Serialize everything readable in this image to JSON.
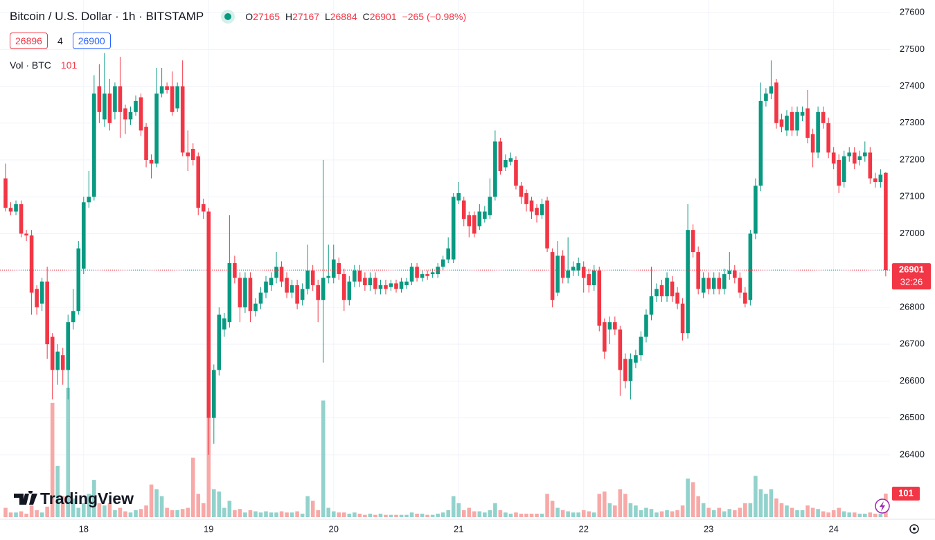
{
  "chart_data": {
    "type": "candlestick",
    "title": "Bitcoin / U.S. Dollar · 1h · BITSTAMP",
    "ohlc_letters": [
      "O",
      "H",
      "L",
      "C"
    ],
    "change": "−265 (−0.98%)",
    "bid": 26896,
    "spread": 4,
    "ask": 26900,
    "volume_legend": "Vol · BTC",
    "countdown": "32:26",
    "branding": "TradingView",
    "up_color": "#089981",
    "down_color": "#f23645",
    "volume_up_color": "#92d2cc",
    "volume_down_color": "#f7a9a7",
    "grid": true,
    "ylim": [
      26225,
      27634
    ],
    "yticks": [
      26400,
      26500,
      26600,
      26700,
      26800,
      26900,
      27000,
      27100,
      27200,
      27300,
      27400,
      27500,
      27600
    ],
    "categories": [
      null,
      null,
      null,
      null,
      null,
      null,
      null,
      null,
      null,
      null,
      null,
      null,
      null,
      null,
      null,
      "18",
      null,
      null,
      null,
      null,
      null,
      null,
      null,
      null,
      null,
      null,
      null,
      null,
      null,
      null,
      null,
      null,
      null,
      null,
      null,
      null,
      null,
      null,
      null,
      "19",
      null,
      null,
      null,
      null,
      null,
      null,
      null,
      null,
      null,
      null,
      null,
      null,
      null,
      null,
      null,
      null,
      null,
      null,
      null,
      null,
      null,
      null,
      null,
      "20",
      null,
      null,
      null,
      null,
      null,
      null,
      null,
      null,
      null,
      null,
      null,
      null,
      null,
      null,
      null,
      null,
      null,
      null,
      null,
      null,
      null,
      null,
      null,
      "21",
      null,
      null,
      null,
      null,
      null,
      null,
      null,
      null,
      null,
      null,
      null,
      null,
      null,
      null,
      null,
      null,
      null,
      null,
      null,
      null,
      null,
      null,
      null,
      "22",
      null,
      null,
      null,
      null,
      null,
      null,
      null,
      null,
      null,
      null,
      null,
      null,
      null,
      null,
      null,
      null,
      null,
      null,
      null,
      null,
      null,
      null,
      null,
      "23",
      null,
      null,
      null,
      null,
      null,
      null,
      null,
      null,
      null,
      null,
      null,
      null,
      null,
      null,
      null,
      null,
      null,
      null,
      null,
      null,
      null,
      null,
      null,
      "24",
      null,
      null,
      null,
      null,
      null,
      null,
      null,
      null,
      null,
      null
    ],
    "open": [
      27150,
      27070,
      27060,
      27080,
      27000,
      26995,
      26850,
      26810,
      26870,
      26720,
      26630,
      26670,
      26630,
      26760,
      26790,
      26905,
      27085,
      27100,
      27400,
      27310,
      27380,
      27330,
      27400,
      27340,
      27310,
      27330,
      27370,
      27290,
      27200,
      27190,
      27380,
      27400,
      27400,
      27340,
      27400,
      27220,
      27230,
      27210,
      27080,
      27060,
      26500,
      26630,
      26740,
      26760,
      26920,
      26880,
      26800,
      26880,
      26790,
      26810,
      26840,
      26860,
      26880,
      26910,
      26880,
      26840,
      26860,
      26820,
      26850,
      26900,
      26860,
      26820,
      26880,
      26880,
      26920,
      26890,
      26820,
      26870,
      26900,
      26880,
      26860,
      26880,
      26850,
      26860,
      26855,
      26865,
      26850,
      26860,
      26870,
      26910,
      26880,
      26890,
      26890,
      26890,
      26910,
      26930,
      26930,
      27090,
      27090,
      27050,
      27050,
      27020,
      27040,
      27050,
      27100,
      27250,
      27180,
      27195,
      27200,
      27130,
      27110,
      27090,
      27070,
      27050,
      27090,
      26950,
      26840,
      26940,
      26880,
      26900,
      26900,
      26910,
      26890,
      26860,
      26900,
      26760,
      26740,
      26760,
      26740,
      26660,
      26600,
      26650,
      26670,
      26720,
      26780,
      26830,
      26860,
      26830,
      26870,
      26840,
      26810,
      26730,
      27010,
      26950,
      26840,
      26880,
      26850,
      26880,
      26850,
      26890,
      26900,
      26880,
      26840,
      26820,
      27000,
      27130,
      27360,
      27380,
      27410,
      27310,
      27280,
      27330,
      27280,
      27320,
      27340,
      27270,
      27220,
      27330,
      27300,
      27220,
      27200,
      27140,
      27210,
      27220,
      27200,
      27210,
      27220,
      27150,
      27140,
      27165
    ],
    "high": [
      27190,
      27085,
      27090,
      27090,
      27010,
      27010,
      26860,
      26880,
      26910,
      26730,
      26700,
      26690,
      26780,
      26850,
      26980,
      27100,
      27170,
      27430,
      27460,
      27490,
      27420,
      27410,
      27480,
      27350,
      27345,
      27375,
      27380,
      27300,
      27215,
      27450,
      27450,
      27410,
      27440,
      27410,
      27470,
      27280,
      27245,
      27220,
      27095,
      27070,
      26645,
      26800,
      26785,
      27050,
      26940,
      26895,
      26895,
      26895,
      26825,
      26855,
      26885,
      26895,
      26950,
      26925,
      26895,
      26875,
      26875,
      26865,
      26970,
      26915,
      26875,
      27200,
      26970,
      26970,
      26935,
      26905,
      26885,
      26915,
      26915,
      26895,
      26895,
      26895,
      26875,
      26875,
      26875,
      26875,
      26880,
      26880,
      26920,
      26920,
      26900,
      26900,
      26905,
      26920,
      26940,
      26990,
      27110,
      27140,
      27100,
      27060,
      27060,
      27080,
      27075,
      27150,
      27280,
      27260,
      27215,
      27220,
      27210,
      27140,
      27120,
      27100,
      27080,
      27095,
      27100,
      26960,
      26980,
      26955,
      26990,
      26925,
      26935,
      26925,
      26905,
      26915,
      26910,
      26770,
      26775,
      26775,
      26750,
      26675,
      26675,
      26685,
      26735,
      26795,
      26910,
      26865,
      26875,
      26895,
      26885,
      26855,
      26825,
      27080,
      27025,
      26965,
      26895,
      26895,
      26895,
      26895,
      26905,
      26950,
      26915,
      26895,
      26855,
      27010,
      27150,
      27410,
      27395,
      27470,
      27420,
      27325,
      27335,
      27345,
      27345,
      27345,
      27390,
      27285,
      27345,
      27345,
      27315,
      27235,
      27215,
      27225,
      27235,
      27235,
      27225,
      27250,
      27235,
      27165,
      27175,
      27167
    ],
    "low": [
      27060,
      27050,
      27050,
      26990,
      26980,
      26780,
      26780,
      26790,
      26660,
      26550,
      26590,
      26590,
      26550,
      26740,
      26780,
      26890,
      27070,
      27090,
      27300,
      27290,
      27280,
      27310,
      27260,
      27270,
      27295,
      27320,
      27265,
      27180,
      27150,
      27180,
      27370,
      27380,
      27320,
      27330,
      27210,
      27170,
      27185,
      27050,
      27040,
      26400,
      26430,
      26615,
      26720,
      26745,
      26865,
      26760,
      26785,
      26760,
      26775,
      26795,
      26825,
      26845,
      26865,
      26855,
      26825,
      26825,
      26795,
      26805,
      26835,
      26845,
      26760,
      26650,
      26865,
      26865,
      26875,
      26790,
      26805,
      26855,
      26855,
      26845,
      26845,
      26835,
      26835,
      26835,
      26845,
      26840,
      26840,
      26850,
      26860,
      26870,
      26870,
      26875,
      26880,
      26880,
      26900,
      26920,
      26920,
      27080,
      27020,
      26990,
      26990,
      27010,
      27030,
      27040,
      27090,
      27160,
      27170,
      27185,
      27120,
      27080,
      27060,
      27040,
      27030,
      27040,
      26950,
      26800,
      26830,
      26865,
      26865,
      26885,
      26885,
      26840,
      26840,
      26845,
      26735,
      26660,
      26700,
      26725,
      26560,
      26580,
      26550,
      26635,
      26655,
      26705,
      26765,
      26815,
      26815,
      26815,
      26815,
      26795,
      26710,
      26715,
      26935,
      26835,
      26825,
      26835,
      26835,
      26835,
      26835,
      26875,
      26865,
      26825,
      26800,
      26805,
      26985,
      27115,
      27345,
      27365,
      27285,
      27275,
      27265,
      27265,
      27265,
      27305,
      27245,
      27180,
      27205,
      27285,
      27205,
      27175,
      27110,
      27125,
      27195,
      27175,
      27185,
      27195,
      27135,
      27125,
      27125,
      26884
    ],
    "close": [
      27070,
      27060,
      27080,
      27000,
      26995,
      26840,
      26800,
      26870,
      26700,
      26630,
      26680,
      26630,
      26760,
      26790,
      26960,
      27085,
      27100,
      27380,
      27330,
      27380,
      27300,
      27400,
      27330,
      27310,
      27330,
      27360,
      27280,
      27200,
      27190,
      27380,
      27400,
      27390,
      27330,
      27400,
      27220,
      27210,
      27200,
      27070,
      27060,
      26500,
      26630,
      26780,
      26770,
      26920,
      26880,
      26800,
      26880,
      26790,
      26810,
      26840,
      26870,
      26880,
      26910,
      26870,
      26840,
      26860,
      26810,
      26850,
      26900,
      26860,
      26820,
      26880,
      26885,
      26930,
      26890,
      26820,
      26870,
      26900,
      26870,
      26860,
      26880,
      26850,
      26860,
      26850,
      26865,
      26850,
      26870,
      26870,
      26910,
      26880,
      26890,
      26885,
      26895,
      26910,
      26930,
      26960,
      27100,
      27110,
      27040,
      27020,
      27000,
      27060,
      27060,
      27100,
      27250,
      27170,
      27200,
      27205,
      27130,
      27100,
      27080,
      27060,
      27050,
      27080,
      26960,
      26820,
      26940,
      26880,
      26900,
      26910,
      26920,
      26880,
      26860,
      26900,
      26750,
      26680,
      26760,
      26740,
      26630,
      26600,
      26660,
      26670,
      26720,
      26780,
      26830,
      26850,
      26830,
      26880,
      26830,
      26810,
      26730,
      27010,
      26950,
      26850,
      26880,
      26850,
      26880,
      26850,
      26890,
      26900,
      26880,
      26840,
      26810,
      27000,
      27130,
      27360,
      27380,
      27400,
      27300,
      27290,
      27320,
      27280,
      27330,
      27330,
      27260,
      27220,
      27330,
      27300,
      27220,
      27190,
      27130,
      27210,
      27220,
      27190,
      27210,
      27220,
      27150,
      27140,
      27160,
      26901
    ],
    "volume": [
      40,
      20,
      20,
      25,
      15,
      50,
      30,
      20,
      45,
      490,
      220,
      90,
      555,
      80,
      40,
      60,
      100,
      160,
      60,
      50,
      60,
      30,
      40,
      25,
      20,
      30,
      35,
      50,
      140,
      120,
      90,
      40,
      30,
      30,
      35,
      40,
      255,
      100,
      60,
      440,
      120,
      110,
      40,
      70,
      30,
      35,
      20,
      30,
      25,
      20,
      25,
      20,
      20,
      25,
      20,
      20,
      25,
      15,
      90,
      70,
      30,
      500,
      40,
      25,
      20,
      20,
      15,
      20,
      15,
      10,
      15,
      10,
      15,
      10,
      10,
      10,
      10,
      10,
      20,
      15,
      15,
      10,
      10,
      15,
      20,
      30,
      90,
      60,
      30,
      40,
      25,
      25,
      20,
      30,
      60,
      30,
      20,
      15,
      20,
      15,
      15,
      15,
      15,
      15,
      100,
      70,
      40,
      30,
      25,
      20,
      20,
      30,
      25,
      20,
      100,
      110,
      60,
      50,
      120,
      100,
      60,
      50,
      30,
      40,
      35,
      20,
      25,
      30,
      25,
      30,
      50,
      165,
      150,
      90,
      60,
      40,
      30,
      40,
      25,
      35,
      30,
      40,
      60,
      60,
      177,
      120,
      100,
      120,
      80,
      60,
      50,
      40,
      30,
      30,
      50,
      40,
      35,
      25,
      20,
      30,
      40,
      25,
      20,
      20,
      15,
      15,
      20,
      15,
      15,
      101
    ]
  }
}
